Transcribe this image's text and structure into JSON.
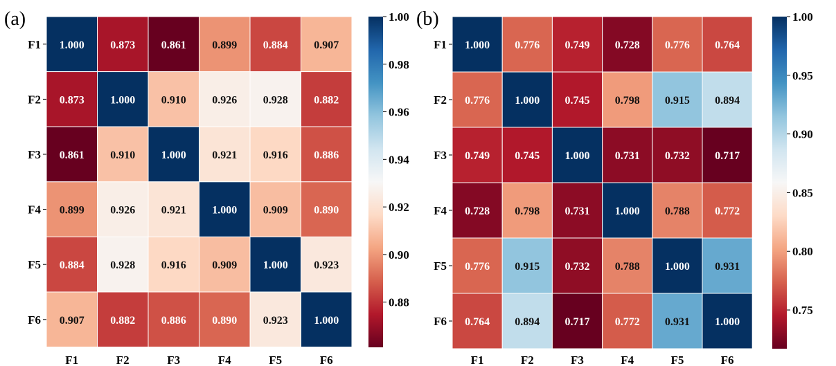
{
  "chart_data": [
    {
      "type": "heatmap",
      "panel_label": "(a)",
      "row_labels": [
        "F1",
        "F2",
        "F3",
        "F4",
        "F5",
        "F6"
      ],
      "col_labels": [
        "F1",
        "F2",
        "F3",
        "F4",
        "F5",
        "F6"
      ],
      "values": [
        [
          1.0,
          0.873,
          0.861,
          0.899,
          0.884,
          0.907
        ],
        [
          0.873,
          1.0,
          0.91,
          0.926,
          0.928,
          0.882
        ],
        [
          0.861,
          0.91,
          1.0,
          0.921,
          0.916,
          0.886
        ],
        [
          0.899,
          0.926,
          0.921,
          1.0,
          0.909,
          0.89
        ],
        [
          0.884,
          0.928,
          0.916,
          0.909,
          1.0,
          0.923
        ],
        [
          0.907,
          0.882,
          0.886,
          0.89,
          0.923,
          1.0
        ]
      ],
      "value_format": "0.000",
      "colormap": "RdBu",
      "color_range": [
        0.861,
        1.0
      ],
      "colorbar_ticks": [
        "1.00",
        "0.98",
        "0.96",
        "0.94",
        "0.92",
        "0.90",
        "0.88"
      ],
      "colorbar_tick_values": [
        1.0,
        0.98,
        0.96,
        0.94,
        0.92,
        0.9,
        0.88
      ]
    },
    {
      "type": "heatmap",
      "panel_label": "(b)",
      "row_labels": [
        "F1",
        "F2",
        "F3",
        "F4",
        "F5",
        "F6"
      ],
      "col_labels": [
        "F1",
        "F2",
        "F3",
        "F4",
        "F5",
        "F6"
      ],
      "values": [
        [
          1.0,
          0.776,
          0.749,
          0.728,
          0.776,
          0.764
        ],
        [
          0.776,
          1.0,
          0.745,
          0.798,
          0.915,
          0.894
        ],
        [
          0.749,
          0.745,
          1.0,
          0.731,
          0.732,
          0.717
        ],
        [
          0.728,
          0.798,
          0.731,
          1.0,
          0.788,
          0.772
        ],
        [
          0.776,
          0.915,
          0.732,
          0.788,
          1.0,
          0.931
        ],
        [
          0.764,
          0.894,
          0.717,
          0.772,
          0.931,
          1.0
        ]
      ],
      "value_format": "0.000",
      "colormap": "RdBu",
      "color_range": [
        0.717,
        1.0
      ],
      "colorbar_ticks": [
        "1.00",
        "0.95",
        "0.90",
        "0.85",
        "0.80",
        "0.75"
      ],
      "colorbar_tick_values": [
        1.0,
        0.95,
        0.9,
        0.85,
        0.8,
        0.75
      ]
    }
  ],
  "colors": {
    "dark_red": "#67001f",
    "red": "#b2182b",
    "light_red": "#d6604d",
    "salmon": "#f4a582",
    "peach": "#fddbc7",
    "white": "#f7f7f7",
    "light_blue": "#d1e5f0",
    "sky_blue": "#92c5de",
    "blue": "#4393c3",
    "mid_blue": "#2166ac",
    "dark_blue": "#053061"
  }
}
